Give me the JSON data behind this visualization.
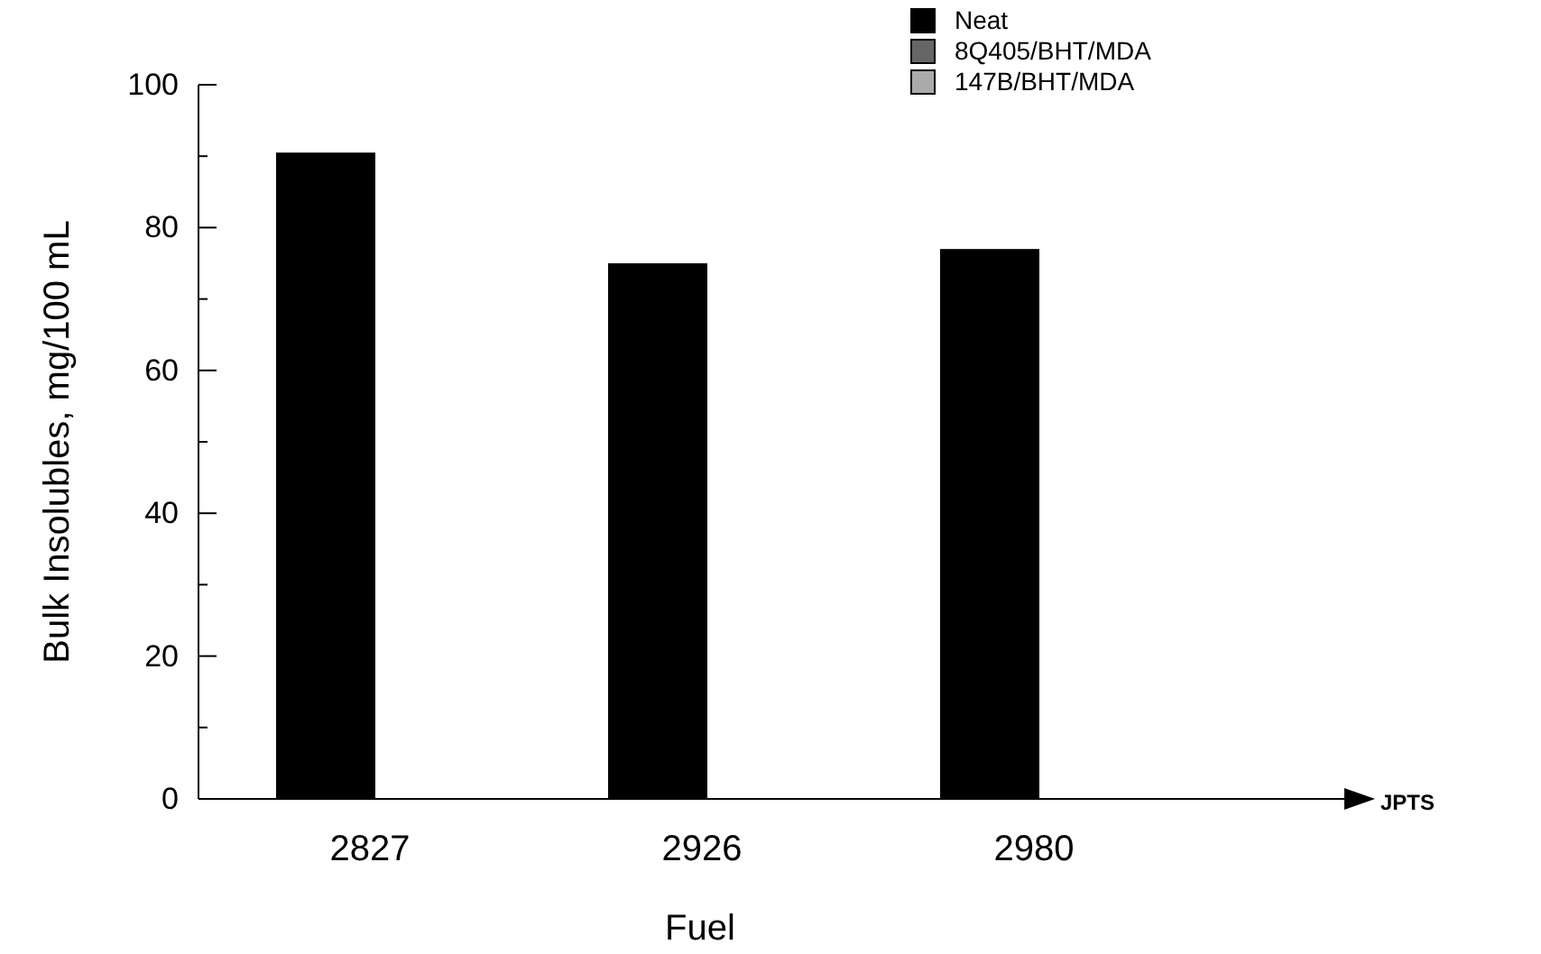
{
  "chart_data": {
    "type": "bar",
    "xlabel": "Fuel",
    "ylabel": "Bulk Insolubles, mg/100 mL",
    "categories": [
      "2827",
      "2926",
      "2980"
    ],
    "series": [
      {
        "name": "Neat",
        "color": "#000000",
        "values": [
          90.5,
          75,
          77
        ]
      },
      {
        "name": "8Q405/BHT/MDA",
        "color": "#666666",
        "values": [
          null,
          null,
          null
        ]
      },
      {
        "name": "147B/BHT/MDA",
        "color": "#aaaaaa",
        "values": [
          null,
          null,
          null
        ]
      }
    ],
    "ylim": [
      0,
      100
    ],
    "yticks": [
      0,
      {
        "value": 10,
        "label": null
      },
      20,
      {
        "value": 30,
        "label": null
      },
      40,
      {
        "value": 50,
        "label": null
      },
      60,
      {
        "value": 70,
        "label": null
      },
      80,
      {
        "value": 90,
        "label": null
      },
      100
    ],
    "legend": "top right",
    "annotations": [
      "JPTS"
    ]
  }
}
